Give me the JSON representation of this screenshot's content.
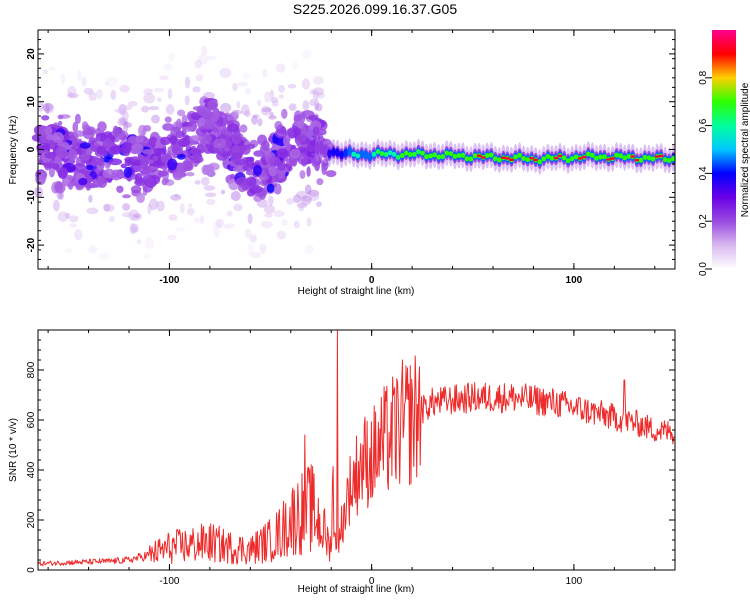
{
  "title": "S225.2026.099.16.37.G05",
  "chart_data": [
    {
      "type": "heatmap",
      "title": "S225.2026.099.16.37.G05",
      "xlabel": "Height of straight line (km)",
      "ylabel": "Frequency (Hz)",
      "xlim": [
        -165,
        150
      ],
      "ylim": [
        -25,
        25
      ],
      "xticks": [
        -100,
        0,
        100
      ],
      "xtick_labels": [
        "-100",
        "0",
        "100"
      ],
      "yticks": [
        -20,
        -10,
        0,
        10,
        20
      ],
      "ytick_labels": [
        "-20",
        "-10",
        "0",
        "10",
        "20"
      ],
      "colorbar": {
        "label": "Normalized spectral amplitude",
        "range": [
          0,
          1
        ],
        "ticks": [
          0.0,
          0.2,
          0.4,
          0.6,
          0.8
        ],
        "tick_labels": [
          "0.0",
          "0.2",
          "0.4",
          "0.6",
          "0.8"
        ],
        "colors": [
          "#ffffff",
          "#d9b8f0",
          "#9a4ae0",
          "#6a00e8",
          "#0000ff",
          "#00c8ff",
          "#00ff9c",
          "#2cff00",
          "#ffd000",
          "#ff0000",
          "#ff0090"
        ]
      },
      "ridge": {
        "description": "dominant frequency vs height",
        "x": [
          -165,
          -140,
          -115,
          -100,
          -80,
          -60,
          -40,
          -25,
          -15,
          0,
          20,
          50,
          80,
          110,
          150
        ],
        "frequency_hz": [
          0,
          -1,
          -4,
          0,
          3,
          -3,
          0,
          0,
          -1,
          -1,
          -1,
          -1.5,
          -2,
          -1.5,
          -2
        ],
        "amplitude": [
          0.2,
          0.2,
          0.2,
          0.2,
          0.25,
          0.2,
          0.25,
          0.3,
          0.5,
          0.6,
          0.75,
          0.9,
          0.9,
          0.9,
          0.9
        ]
      }
    },
    {
      "type": "line",
      "xlabel": "Height of straight line (km)",
      "ylabel": "SNR (10 * v/v)",
      "xlim": [
        -165,
        150
      ],
      "ylim": [
        0,
        960
      ],
      "xticks": [
        -100,
        0,
        100
      ],
      "xtick_labels": [
        "-100",
        "0",
        "100"
      ],
      "yticks": [
        0,
        200,
        400,
        600,
        800
      ],
      "ytick_labels": [
        "0",
        "200",
        "400",
        "600",
        "800"
      ],
      "series": [
        {
          "name": "SNR",
          "color": "#ee2b2b",
          "x": [
            -165,
            -150,
            -130,
            -120,
            -110,
            -100,
            -90,
            -80,
            -70,
            -60,
            -50,
            -45,
            -40,
            -35,
            -30,
            -25,
            -22,
            -20,
            -18,
            -16,
            -14,
            -12,
            -10,
            -5,
            0,
            5,
            10,
            15,
            20,
            25,
            30,
            40,
            50,
            60,
            70,
            80,
            90,
            100,
            110,
            120,
            125,
            130,
            140,
            150
          ],
          "values": [
            25,
            30,
            35,
            40,
            60,
            90,
            100,
            110,
            90,
            80,
            120,
            150,
            200,
            230,
            250,
            180,
            120,
            80,
            960,
            180,
            200,
            300,
            340,
            430,
            450,
            500,
            540,
            580,
            600,
            640,
            670,
            680,
            690,
            690,
            690,
            680,
            670,
            650,
            630,
            610,
            600,
            590,
            560,
            550
          ],
          "spikes": [
            {
              "x": -17,
              "value": 960
            },
            {
              "x": -33,
              "value": 540
            },
            {
              "x": 125,
              "value": 760
            }
          ]
        }
      ]
    }
  ]
}
